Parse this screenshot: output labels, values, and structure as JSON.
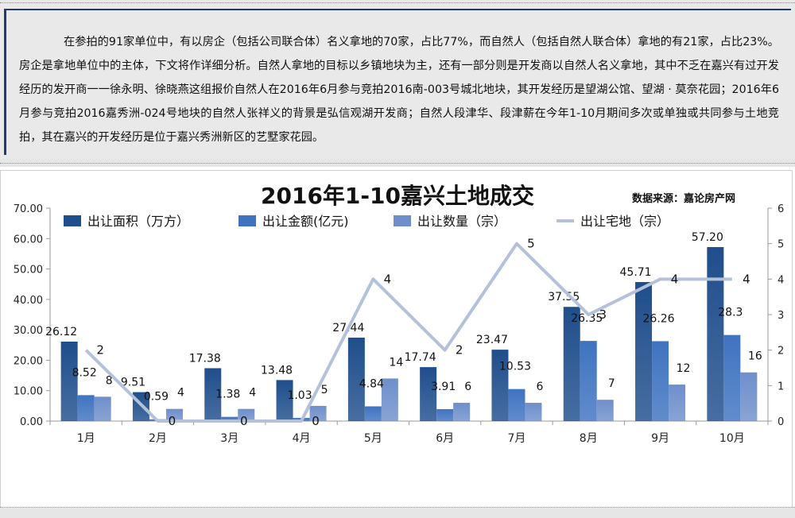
{
  "article": {
    "paragraph": "在参拍的91家单位中，有以房企（包括公司联合体）名义拿地的70家，占比77%，而自然人（包括自然人联合体）拿地的有21家，占比23%。房企是拿地单位中的主体，下文将作详细分析。自然人拿地的目标以乡镇地块为主，还有一部分则是开发商以自然人名义拿地，其中不乏在嘉兴有过开发经历的发开商一一徐永明、徐晓燕这组报价自然人在2016年6月参与竞拍2016南-003号城北地块，其开发经历是望湖公馆、望湖 · 莫奈花园；2016年6月参与竞拍2016嘉秀洲-024号地块的自然人张祥义的背景是弘信观湖开发商；自然人段津华、段津薪在今年1-10月期间多次或单独或共同参与土地竞拍，其在嘉兴的开发经历是位于嘉兴秀洲新区的艺墅家花园。"
  },
  "chart_data": {
    "type": "bar",
    "title": "2016年1-10嘉兴土地成交",
    "source": "数据来源：嘉论房产网",
    "categories": [
      "1月",
      "2月",
      "3月",
      "4月",
      "5月",
      "6月",
      "7月",
      "8月",
      "9月",
      "10月"
    ],
    "series": [
      {
        "name": "出让面积（万方）",
        "type": "bar",
        "axis": "left",
        "color": "#1f4e8c",
        "values": [
          26.12,
          9.51,
          17.38,
          13.48,
          27.44,
          17.74,
          23.47,
          37.55,
          45.71,
          57.2
        ],
        "labels": [
          "26.12",
          "9.51",
          "17.38",
          "13.48",
          "27.44",
          "17.74",
          "23.47",
          "37.55",
          "45.71",
          "57.20"
        ]
      },
      {
        "name": "出让金额(亿元)",
        "type": "bar",
        "axis": "left",
        "color": "#3f73c0",
        "values": [
          8.52,
          0.59,
          1.38,
          1.03,
          4.84,
          3.91,
          10.53,
          26.35,
          26.26,
          28.3
        ],
        "labels": [
          "8.52",
          "0.59",
          "1.38",
          "1.03",
          "4.84",
          "3.91",
          "10.53",
          "26.35",
          "26.26",
          "28.3"
        ]
      },
      {
        "name": "出让数量（宗）",
        "type": "bar",
        "axis": "left",
        "color": "#6f8fcb",
        "values": [
          8,
          4,
          4,
          5,
          14,
          6,
          6,
          7,
          12,
          16
        ],
        "labels": [
          "8",
          "4",
          "4",
          "5",
          "14",
          "6",
          "6",
          "7",
          "12",
          "16"
        ]
      },
      {
        "name": "出让宅地（宗）",
        "type": "line",
        "axis": "right",
        "color": "#b4c2d9",
        "values": [
          2,
          0,
          0,
          0,
          4,
          2,
          5,
          3,
          4,
          4
        ],
        "labels": [
          "2",
          "0",
          "0",
          "0",
          "4",
          "2",
          "5",
          "3",
          "4",
          "4"
        ]
      }
    ],
    "y_left": {
      "min": 0,
      "max": 70,
      "step": 10,
      "ticks": [
        "0.00",
        "10.00",
        "20.00",
        "30.00",
        "40.00",
        "50.00",
        "60.00",
        "70.00"
      ]
    },
    "y_right": {
      "min": 0,
      "max": 6,
      "step": 1,
      "ticks": [
        "0",
        "1",
        "2",
        "3",
        "4",
        "5",
        "6"
      ]
    },
    "grid": false,
    "legend": "top"
  }
}
